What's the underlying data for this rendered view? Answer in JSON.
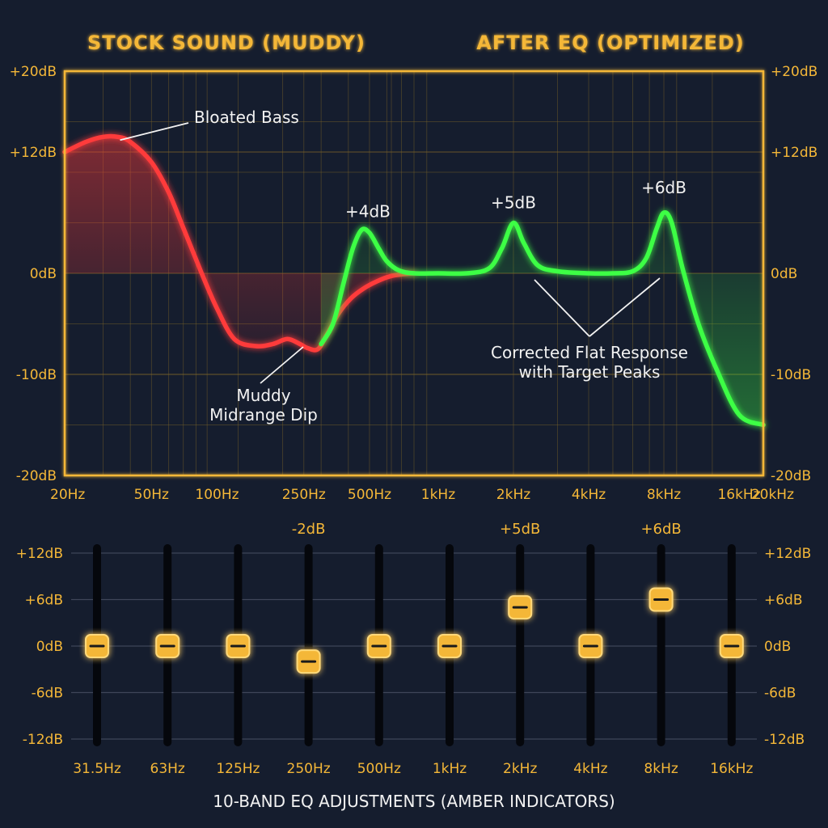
{
  "chart_data": [
    {
      "type": "line",
      "title_left": "STOCK SOUND (MUDDY)",
      "title_right": "AFTER EQ (OPTIMIZED)",
      "xscale": "log",
      "xlim": [
        20,
        20000
      ],
      "ylim": [
        -20,
        20
      ],
      "x_split_hz": 800,
      "x_ticks": [
        {
          "value": 20,
          "label": "20Hz"
        },
        {
          "value": 50,
          "label": "50Hz"
        },
        {
          "value": 100,
          "label": "100Hz"
        },
        {
          "value": 250,
          "label": "250Hz"
        },
        {
          "value": 500,
          "label": "500Hz"
        },
        {
          "value": 1000,
          "label": "1kHz"
        },
        {
          "value": 2000,
          "label": "2kHz"
        },
        {
          "value": 4000,
          "label": "4kHz"
        },
        {
          "value": 8000,
          "label": "8kHz"
        },
        {
          "value": 16000,
          "label": "16kHz"
        },
        {
          "value": 20000,
          "label": "20kHz"
        }
      ],
      "y_ticks": [
        {
          "value": 20,
          "label": "+20dB"
        },
        {
          "value": 12,
          "label": "+12dB"
        },
        {
          "value": 0,
          "label": "0dB"
        },
        {
          "value": -10,
          "label": "-10dB"
        },
        {
          "value": -20,
          "label": "-20dB"
        }
      ],
      "grid": true,
      "series": [
        {
          "color": "#ff3b3b",
          "x": [
            20,
            25,
            30,
            35,
            40,
            50,
            60,
            70,
            85,
            100,
            120,
            150,
            180,
            210,
            240,
            260,
            290,
            320,
            360,
            410,
            470,
            540,
            620,
            700,
            800
          ],
          "y": [
            12,
            13,
            13.5,
            13.5,
            13,
            11,
            8,
            4.5,
            0,
            -3.5,
            -6.5,
            -7.2,
            -7,
            -6.5,
            -7,
            -7.4,
            -7.5,
            -6,
            -4,
            -2.5,
            -1.5,
            -0.8,
            -0.3,
            -0.1,
            0
          ]
        },
        {
          "color": "#3dff45",
          "x": [
            300,
            340,
            380,
            420,
            460,
            500,
            550,
            600,
            680,
            800,
            1000,
            1300,
            1600,
            1800,
            2000,
            2200,
            2500,
            3000,
            4000,
            5000,
            6000,
            6800,
            7500,
            8000,
            8600,
            9500,
            11000,
            13000,
            16000,
            20000
          ],
          "y": [
            -7,
            -5,
            -1,
            2.5,
            4.3,
            4,
            2.5,
            1.2,
            0.3,
            0,
            0,
            0,
            0.5,
            2.5,
            5,
            3,
            0.8,
            0.2,
            0,
            0,
            0.2,
            1.5,
            4.5,
            6,
            5,
            0.5,
            -5,
            -9.5,
            -14,
            -15
          ]
        }
      ],
      "annotations": [
        {
          "text": "Bloated Bass",
          "x": 35,
          "y": 13.5
        },
        {
          "text": "+4dB",
          "x": 500,
          "y": 4.3
        },
        {
          "text": "+5dB",
          "x": 2000,
          "y": 5
        },
        {
          "text": "+6dB",
          "x": 8000,
          "y": 6
        },
        {
          "text": "Muddy\nMidrange Dip",
          "x": 240,
          "y": -6.8
        },
        {
          "text": "Corrected Flat Response\nwith Target Peaks",
          "x": 4000,
          "y": 0
        }
      ]
    },
    {
      "type": "bar",
      "title": "10-BAND EQ ADJUSTMENTS (AMBER INDICATORS)",
      "categories": [
        "31.5Hz",
        "63Hz",
        "125Hz",
        "250Hz",
        "500Hz",
        "1kHz",
        "2kHz",
        "4kHz",
        "8kHz",
        "16kHz"
      ],
      "values": [
        0,
        0,
        0,
        -2,
        0,
        0,
        5,
        0,
        6,
        0
      ],
      "value_labels": [
        "",
        "",
        "",
        "-2dB",
        "",
        "",
        "+5dB",
        "",
        "+6dB",
        ""
      ],
      "ylim": [
        -12,
        12
      ],
      "y_ticks": [
        {
          "value": 12,
          "label": "+12dB"
        },
        {
          "value": 6,
          "label": "+6dB"
        },
        {
          "value": 0,
          "label": "0dB"
        },
        {
          "value": -6,
          "label": "-6dB"
        },
        {
          "value": -12,
          "label": "-12dB"
        }
      ]
    }
  ],
  "colors": {
    "background": "#151d2e",
    "amber": "#f4b738",
    "grid": "#7a6228",
    "red": "#ff3b3b",
    "green": "#3dff45",
    "annotation": "#f2f2f2"
  }
}
